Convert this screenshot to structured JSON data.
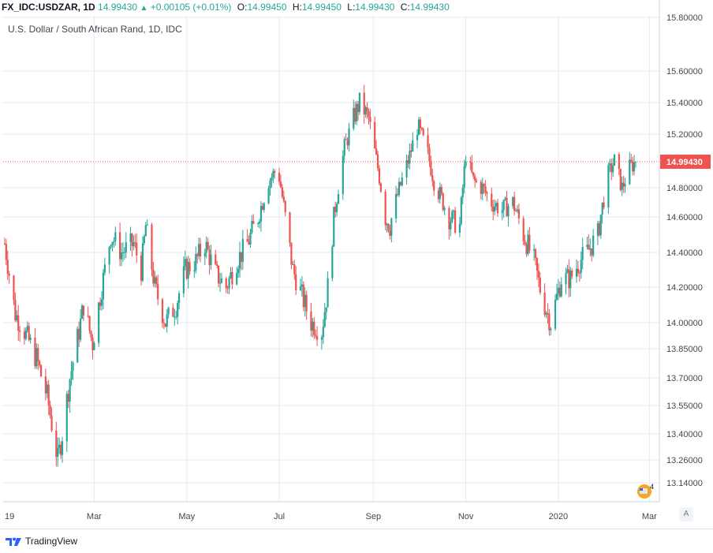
{
  "header": {
    "symbol": "FX_IDC:USDZAR, 1D",
    "last": "14.99430",
    "change": "+0.00105 (+0.01%)",
    "o_label": "O:",
    "o_value": "14.99450",
    "h_label": "H:",
    "h_value": "14.99450",
    "l_label": "L:",
    "l_value": "14.99430",
    "c_label": "C:",
    "c_value": "14.99430"
  },
  "title": "U.S. Dollar / South African Rand, 1D, IDC",
  "badge_count": "4",
  "autoscale_label": "A",
  "brand": "TradingView",
  "colors": {
    "up": "#26a69a",
    "down": "#ef5350",
    "price_line": "#ef5350",
    "grid": "#e6e9f0"
  },
  "chart_data": {
    "type": "candlestick",
    "symbol": "USDZAR",
    "title": "U.S. Dollar / South African Rand, 1D, IDC",
    "last_price": 14.9943,
    "last_price_label": "14.99430",
    "y_ticks": [
      "15.80000",
      "15.60000",
      "15.40000",
      "15.20000",
      "14.80000",
      "14.60000",
      "14.40000",
      "14.20000",
      "14.00000",
      "13.85000",
      "13.70000",
      "13.55000",
      "13.40000",
      "13.26000",
      "13.14000"
    ],
    "y_tick_values": [
      15.8,
      15.6,
      15.4,
      15.2,
      14.8,
      14.6,
      14.4,
      14.2,
      14.0,
      13.85,
      13.7,
      13.55,
      13.4,
      13.26,
      13.14
    ],
    "x_ticks": [
      "19",
      "Mar",
      "May",
      "Jul",
      "Sep",
      "Nov",
      "2020",
      "Mar"
    ],
    "x_tick_dates": [
      "2019-01-01",
      "2019-03-01",
      "2019-05-01",
      "2019-07-01",
      "2019-09-01",
      "2019-11-01",
      "2020-01-01",
      "2020-03-01"
    ],
    "x_range": [
      "2018-12-31",
      "2020-02-21"
    ],
    "close_anchors": [
      [
        "2019-01-01",
        14.45
      ],
      [
        "2019-01-08",
        14.05
      ],
      [
        "2019-01-14",
        13.95
      ],
      [
        "2019-01-22",
        13.8
      ],
      [
        "2019-01-29",
        13.6
      ],
      [
        "2019-02-05",
        13.26
      ],
      [
        "2019-02-08",
        13.4
      ],
      [
        "2019-02-13",
        13.7
      ],
      [
        "2019-02-19",
        13.95
      ],
      [
        "2019-02-22",
        14.1
      ],
      [
        "2019-02-28",
        13.88
      ],
      [
        "2019-03-05",
        14.15
      ],
      [
        "2019-03-08",
        14.3
      ],
      [
        "2019-03-12",
        14.5
      ],
      [
        "2019-03-19",
        14.4
      ],
      [
        "2019-03-27",
        14.45
      ],
      [
        "2019-04-01",
        14.3
      ],
      [
        "2019-04-04",
        14.55
      ],
      [
        "2019-04-10",
        14.2
      ],
      [
        "2019-04-17",
        14.0
      ],
      [
        "2019-04-24",
        14.1
      ],
      [
        "2019-04-30",
        14.3
      ],
      [
        "2019-05-07",
        14.35
      ],
      [
        "2019-05-13",
        14.45
      ],
      [
        "2019-05-20",
        14.28
      ],
      [
        "2019-05-27",
        14.2
      ],
      [
        "2019-06-03",
        14.35
      ],
      [
        "2019-06-10",
        14.45
      ],
      [
        "2019-06-17",
        14.6
      ],
      [
        "2019-06-24",
        14.85
      ],
      [
        "2019-06-30",
        14.95
      ],
      [
        "2019-07-05",
        14.6
      ],
      [
        "2019-07-10",
        14.3
      ],
      [
        "2019-07-16",
        14.15
      ],
      [
        "2019-07-22",
        14.0
      ],
      [
        "2019-07-29",
        13.95
      ],
      [
        "2019-08-02",
        14.2
      ],
      [
        "2019-08-06",
        14.6
      ],
      [
        "2019-08-13",
        15.1
      ],
      [
        "2019-08-19",
        15.3
      ],
      [
        "2019-08-23",
        15.4
      ],
      [
        "2019-08-29",
        15.3
      ],
      [
        "2019-09-04",
        14.95
      ],
      [
        "2019-09-09",
        14.6
      ],
      [
        "2019-09-12",
        14.55
      ],
      [
        "2019-09-17",
        14.75
      ],
      [
        "2019-09-24",
        15.0
      ],
      [
        "2019-09-30",
        15.25
      ],
      [
        "2019-10-06",
        15.1
      ],
      [
        "2019-10-11",
        14.85
      ],
      [
        "2019-10-15",
        14.75
      ],
      [
        "2019-10-21",
        14.6
      ],
      [
        "2019-10-28",
        14.55
      ],
      [
        "2019-11-01",
        15.05
      ],
      [
        "2019-11-06",
        14.85
      ],
      [
        "2019-11-12",
        14.8
      ],
      [
        "2019-11-18",
        14.7
      ],
      [
        "2019-11-25",
        14.65
      ],
      [
        "2019-12-02",
        14.7
      ],
      [
        "2019-12-09",
        14.5
      ],
      [
        "2019-12-16",
        14.35
      ],
      [
        "2019-12-21",
        14.15
      ],
      [
        "2019-12-27",
        14.0
      ],
      [
        "2020-01-03",
        14.25
      ],
      [
        "2020-01-09",
        14.25
      ],
      [
        "2020-01-15",
        14.35
      ],
      [
        "2020-01-20",
        14.4
      ],
      [
        "2020-01-27",
        14.5
      ],
      [
        "2020-02-03",
        14.9
      ],
      [
        "2020-02-07",
        15.0
      ],
      [
        "2020-02-12",
        14.8
      ],
      [
        "2020-02-17",
        14.95
      ],
      [
        "2020-02-21",
        14.9943
      ]
    ]
  }
}
